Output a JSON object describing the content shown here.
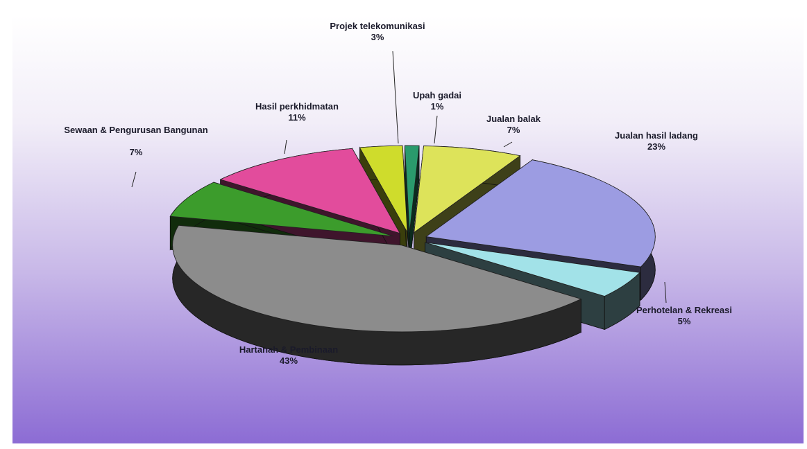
{
  "chart_data": {
    "type": "pie",
    "categories": [
      "Projek telekomunikasi",
      "Upah gadai",
      "Jualan balak",
      "Jualan hasil ladang",
      "Perhotelan & Rekreasi",
      "Hartanah & Pembinaan",
      "Sewaan & Pengurusan Bangunan",
      "Hasil perkhidmatan"
    ],
    "values": [
      3,
      1,
      7,
      23,
      5,
      43,
      7,
      11
    ],
    "value_labels": [
      "3%",
      "1%",
      "7%",
      "23%",
      "5%",
      "43%",
      "7%",
      "11%"
    ],
    "colors": [
      "#cfdc2c",
      "#2a9a6c",
      "#dde35a",
      "#9c9ce2",
      "#a2e2e8",
      "#8c8c8c",
      "#3c9c2c",
      "#e24c9c"
    ]
  }
}
